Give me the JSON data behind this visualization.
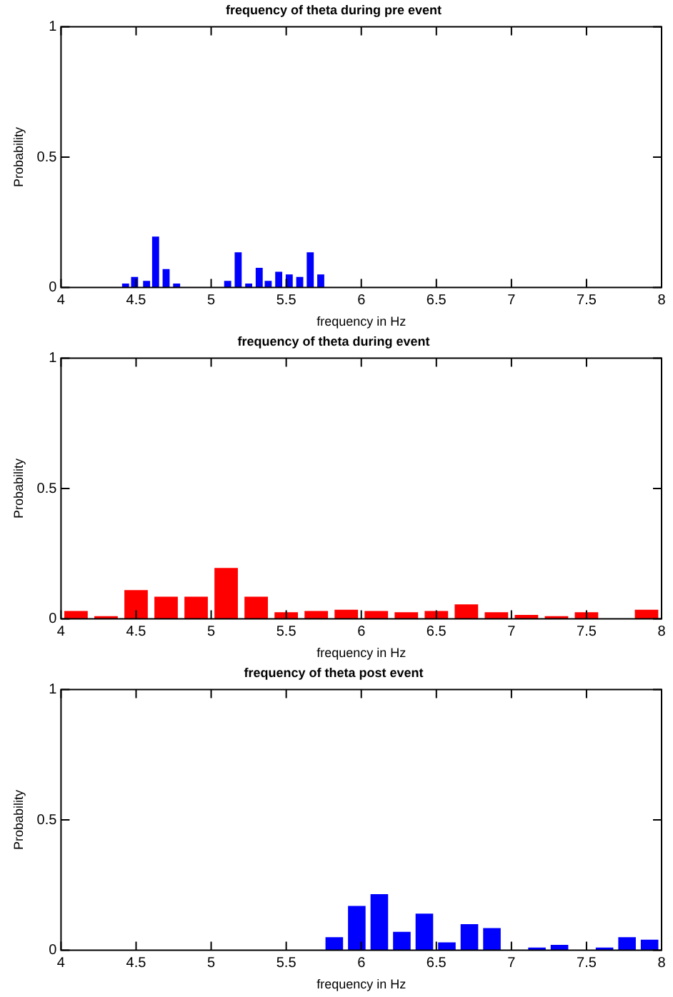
{
  "chart_data": [
    {
      "type": "bar",
      "title": "frequency of theta during pre event",
      "xlabel": "frequency in Hz",
      "ylabel": "Probability",
      "xlim": [
        4,
        8
      ],
      "xticks": [
        4,
        4.5,
        5,
        5.5,
        6,
        6.5,
        7,
        7.5,
        8
      ],
      "ylim": [
        0,
        1
      ],
      "yticks": [
        0,
        0.5,
        1
      ],
      "grid": false,
      "legend": false,
      "x": [
        4.43,
        4.49,
        4.57,
        4.63,
        4.7,
        4.77,
        5.11,
        5.18,
        5.25,
        5.32,
        5.38,
        5.45,
        5.52,
        5.59,
        5.66,
        5.73
      ],
      "values": [
        0.015,
        0.04,
        0.025,
        0.195,
        0.07,
        0.015,
        0.025,
        0.135,
        0.015,
        0.075,
        0.025,
        0.06,
        0.05,
        0.04,
        0.135,
        0.05
      ],
      "color": "#0000ff"
    },
    {
      "type": "bar",
      "title": "frequency of theta during event",
      "xlabel": "frequency in Hz",
      "ylabel": "Probability",
      "xlim": [
        4,
        8
      ],
      "xticks": [
        4,
        4.5,
        5,
        5.5,
        6,
        6.5,
        7,
        7.5,
        8
      ],
      "ylim": [
        0,
        1
      ],
      "yticks": [
        0,
        0.5,
        1
      ],
      "grid": false,
      "legend": false,
      "x": [
        4.1,
        4.3,
        4.5,
        4.7,
        4.9,
        5.1,
        5.3,
        5.5,
        5.7,
        5.9,
        6.1,
        6.3,
        6.5,
        6.7,
        6.9,
        7.1,
        7.3,
        7.5,
        7.9
      ],
      "values": [
        0.03,
        0.01,
        0.11,
        0.085,
        0.085,
        0.195,
        0.085,
        0.025,
        0.03,
        0.035,
        0.03,
        0.025,
        0.03,
        0.055,
        0.025,
        0.015,
        0.01,
        0.025,
        0.035
      ],
      "color": "#ff0000"
    },
    {
      "type": "bar",
      "title": "frequency of theta post event",
      "xlabel": "frequency in Hz",
      "ylabel": "Probability",
      "xlim": [
        4,
        8
      ],
      "xticks": [
        4,
        4.5,
        5,
        5.5,
        6,
        6.5,
        7,
        7.5,
        8
      ],
      "ylim": [
        0,
        1
      ],
      "yticks": [
        0,
        0.5,
        1
      ],
      "grid": false,
      "legend": false,
      "x": [
        5.82,
        5.97,
        6.12,
        6.27,
        6.42,
        6.57,
        6.72,
        6.87,
        7.17,
        7.32,
        7.62,
        7.77,
        7.92
      ],
      "values": [
        0.05,
        0.17,
        0.215,
        0.07,
        0.14,
        0.03,
        0.1,
        0.085,
        0.01,
        0.02,
        0.01,
        0.05,
        0.04
      ],
      "color": "#0000ff"
    }
  ]
}
